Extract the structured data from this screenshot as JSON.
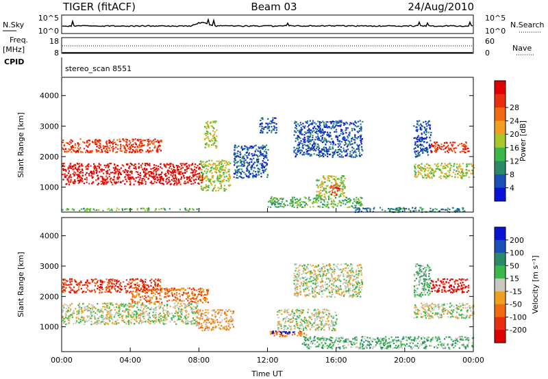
{
  "header": {
    "title": "TIGER (fitACF)",
    "beam": "Beam 03",
    "date": "24/Aug/2010"
  },
  "nsky_panel": {
    "left_label": "N.Sky",
    "left_top": "10^5",
    "left_bottom": "10^0",
    "right_top": "10^5",
    "right_bottom": "10^0",
    "right_label": "N.Search"
  },
  "freq_panel": {
    "left_label_1": "Freq.",
    "left_label_2": "[MHz]",
    "left_top": "18",
    "left_bottom": "8",
    "right_top": "60",
    "right_bottom": "0",
    "right_label": "Nave",
    "cpid_label": "CPID"
  },
  "cpid_text": "stereo_scan 8551",
  "x_axis": {
    "title": "Time UT",
    "ticks": [
      "00:00",
      "04:00",
      "08:00",
      "12:00",
      "16:00",
      "20:00",
      "00:00"
    ]
  },
  "chart_data": [
    {
      "type": "heatmap",
      "panel": "power",
      "ylabel": "Slant Range [km]",
      "ylim": [
        180,
        4600
      ],
      "yticks": [
        "1000",
        "2000",
        "3000",
        "4000"
      ],
      "xlim_hours": [
        0,
        24
      ],
      "colorbar": {
        "label": "Power [dB]",
        "ticks": [
          "4",
          "8",
          "12",
          "16",
          "20",
          "24",
          "28"
        ],
        "colors": [
          "#0a12d8",
          "#1a4fb8",
          "#2a8a6a",
          "#3ab84a",
          "#a8c82a",
          "#f0a020",
          "#f06a10",
          "#e83010",
          "#e00000"
        ]
      },
      "regions": [
        {
          "t0": 0.0,
          "t1": 8.2,
          "r0": 1100,
          "r1": 1800,
          "level": 8
        },
        {
          "t0": 0.0,
          "t1": 5.8,
          "r0": 2150,
          "r1": 2600,
          "level": 7
        },
        {
          "t0": 0.0,
          "t1": 8.3,
          "r0": 250,
          "r1": 330,
          "level": 3
        },
        {
          "t0": 8.0,
          "t1": 9.8,
          "r0": 900,
          "r1": 1900,
          "level": 4
        },
        {
          "t0": 8.3,
          "t1": 9.0,
          "r0": 2300,
          "r1": 3200,
          "level": 4
        },
        {
          "t0": 10.0,
          "t1": 12.0,
          "r0": 1300,
          "r1": 2400,
          "level": 1
        },
        {
          "t0": 12.0,
          "t1": 17.5,
          "r0": 350,
          "r1": 700,
          "level": 3
        },
        {
          "t0": 14.8,
          "t1": 16.5,
          "r0": 700,
          "r1": 1400,
          "level": 4
        },
        {
          "t0": 15.6,
          "t1": 16.2,
          "r0": 750,
          "r1": 1100,
          "level": 7
        },
        {
          "t0": 13.5,
          "t1": 17.5,
          "r0": 2000,
          "r1": 3200,
          "level": 1
        },
        {
          "t0": 11.5,
          "t1": 12.5,
          "r0": 2800,
          "r1": 3300,
          "level": 1
        },
        {
          "t0": 17.0,
          "t1": 23.5,
          "r0": 200,
          "r1": 350,
          "level": 2
        },
        {
          "t0": 20.5,
          "t1": 24.0,
          "r0": 1300,
          "r1": 1800,
          "level": 4
        },
        {
          "t0": 21.5,
          "t1": 23.7,
          "r0": 2150,
          "r1": 2500,
          "level": 7
        },
        {
          "t0": 20.5,
          "t1": 21.5,
          "r0": 2000,
          "r1": 3200,
          "level": 1
        }
      ]
    },
    {
      "type": "heatmap",
      "panel": "velocity",
      "ylabel": "Slant Range [km]",
      "ylim": [
        180,
        4600
      ],
      "yticks": [
        "1000",
        "2000",
        "3000",
        "4000"
      ],
      "xlim_hours": [
        0,
        24
      ],
      "colorbar": {
        "label": "Velocity [m s⁻¹]",
        "ticks": [
          "200",
          "100",
          "50",
          "15",
          "-15",
          "-50",
          "-100",
          "-200"
        ],
        "colors": [
          "#0a12d8",
          "#1a4fb8",
          "#2a8a6a",
          "#3ab84a",
          "#c8c8c0",
          "#f0a020",
          "#f06a10",
          "#e83010",
          "#e00000"
        ]
      },
      "regions": [
        {
          "t0": 0.0,
          "t1": 8.0,
          "r0": 1100,
          "r1": 1800,
          "level": 4
        },
        {
          "t0": 0.0,
          "t1": 5.8,
          "r0": 2150,
          "r1": 2600,
          "level": 7
        },
        {
          "t0": 4.0,
          "t1": 8.5,
          "r0": 1800,
          "r1": 2300,
          "level": 6
        },
        {
          "t0": 7.8,
          "t1": 10.0,
          "r0": 900,
          "r1": 1600,
          "level": 5
        },
        {
          "t0": 12.0,
          "t1": 14.3,
          "r0": 700,
          "r1": 880,
          "level": 6
        },
        {
          "t0": 12.2,
          "t1": 13.8,
          "r0": 780,
          "r1": 880,
          "level": 0
        },
        {
          "t0": 12.5,
          "t1": 16.0,
          "r0": 900,
          "r1": 1600,
          "level": 4
        },
        {
          "t0": 14.0,
          "t1": 24.0,
          "r0": 300,
          "r1": 700,
          "level": 3
        },
        {
          "t0": 13.5,
          "t1": 17.5,
          "r0": 2000,
          "r1": 3100,
          "level": 4
        },
        {
          "t0": 20.5,
          "t1": 24.0,
          "r0": 1300,
          "r1": 1800,
          "level": 4
        },
        {
          "t0": 21.5,
          "t1": 23.7,
          "r0": 2150,
          "r1": 2600,
          "level": 8
        },
        {
          "t0": 20.5,
          "t1": 21.5,
          "r0": 2000,
          "r1": 3100,
          "level": 3
        }
      ]
    }
  ]
}
